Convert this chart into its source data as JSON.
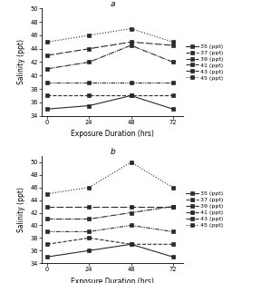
{
  "x": [
    0,
    24,
    48,
    72
  ],
  "panel_a": {
    "title": "a",
    "series": [
      {
        "label": "35 (ppt)",
        "y": [
          35,
          35.5,
          37,
          35
        ],
        "ls_idx": 0
      },
      {
        "label": "37 (ppt)",
        "y": [
          37,
          37,
          37,
          37
        ],
        "ls_idx": 1
      },
      {
        "label": "39 (ppt)",
        "y": [
          39,
          39,
          39,
          39
        ],
        "ls_idx": 2
      },
      {
        "label": "41 (ppt)",
        "y": [
          41,
          42,
          44.5,
          42
        ],
        "ls_idx": 3
      },
      {
        "label": "43 (ppt)",
        "y": [
          43,
          44,
          45,
          44.5
        ],
        "ls_idx": 4
      },
      {
        "label": "45 (ppt)",
        "y": [
          45,
          46,
          47,
          45
        ],
        "ls_idx": 5
      }
    ],
    "ylim": [
      34,
      50
    ],
    "yticks": [
      34,
      36,
      38,
      40,
      42,
      44,
      46,
      48,
      50
    ]
  },
  "panel_b": {
    "title": "b",
    "series": [
      {
        "label": "35 (ppt)",
        "y": [
          35,
          36,
          37,
          35
        ],
        "ls_idx": 0
      },
      {
        "label": "37 (ppt)",
        "y": [
          37,
          38,
          37,
          37
        ],
        "ls_idx": 1
      },
      {
        "label": "39 (ppt)",
        "y": [
          39,
          39,
          40,
          39
        ],
        "ls_idx": 2
      },
      {
        "label": "41 (ppt)",
        "y": [
          41,
          41,
          42,
          43
        ],
        "ls_idx": 3
      },
      {
        "label": "43 (ppt)",
        "y": [
          43,
          43,
          43,
          43
        ],
        "ls_idx": 4
      },
      {
        "label": "45 (ppt)",
        "y": [
          45,
          46,
          50,
          46
        ],
        "ls_idx": 5
      }
    ],
    "ylim": [
      34,
      51
    ],
    "yticks": [
      34,
      36,
      38,
      40,
      42,
      44,
      46,
      48,
      50
    ]
  },
  "ylabel": "Salinity (ppt)",
  "xlabel": "Exposure Duration (hrs)",
  "line_color": "#2a2a2a",
  "legend_fontsize": 4.5,
  "tick_fontsize": 4.8,
  "label_fontsize": 5.5,
  "title_fontsize": 6.5
}
